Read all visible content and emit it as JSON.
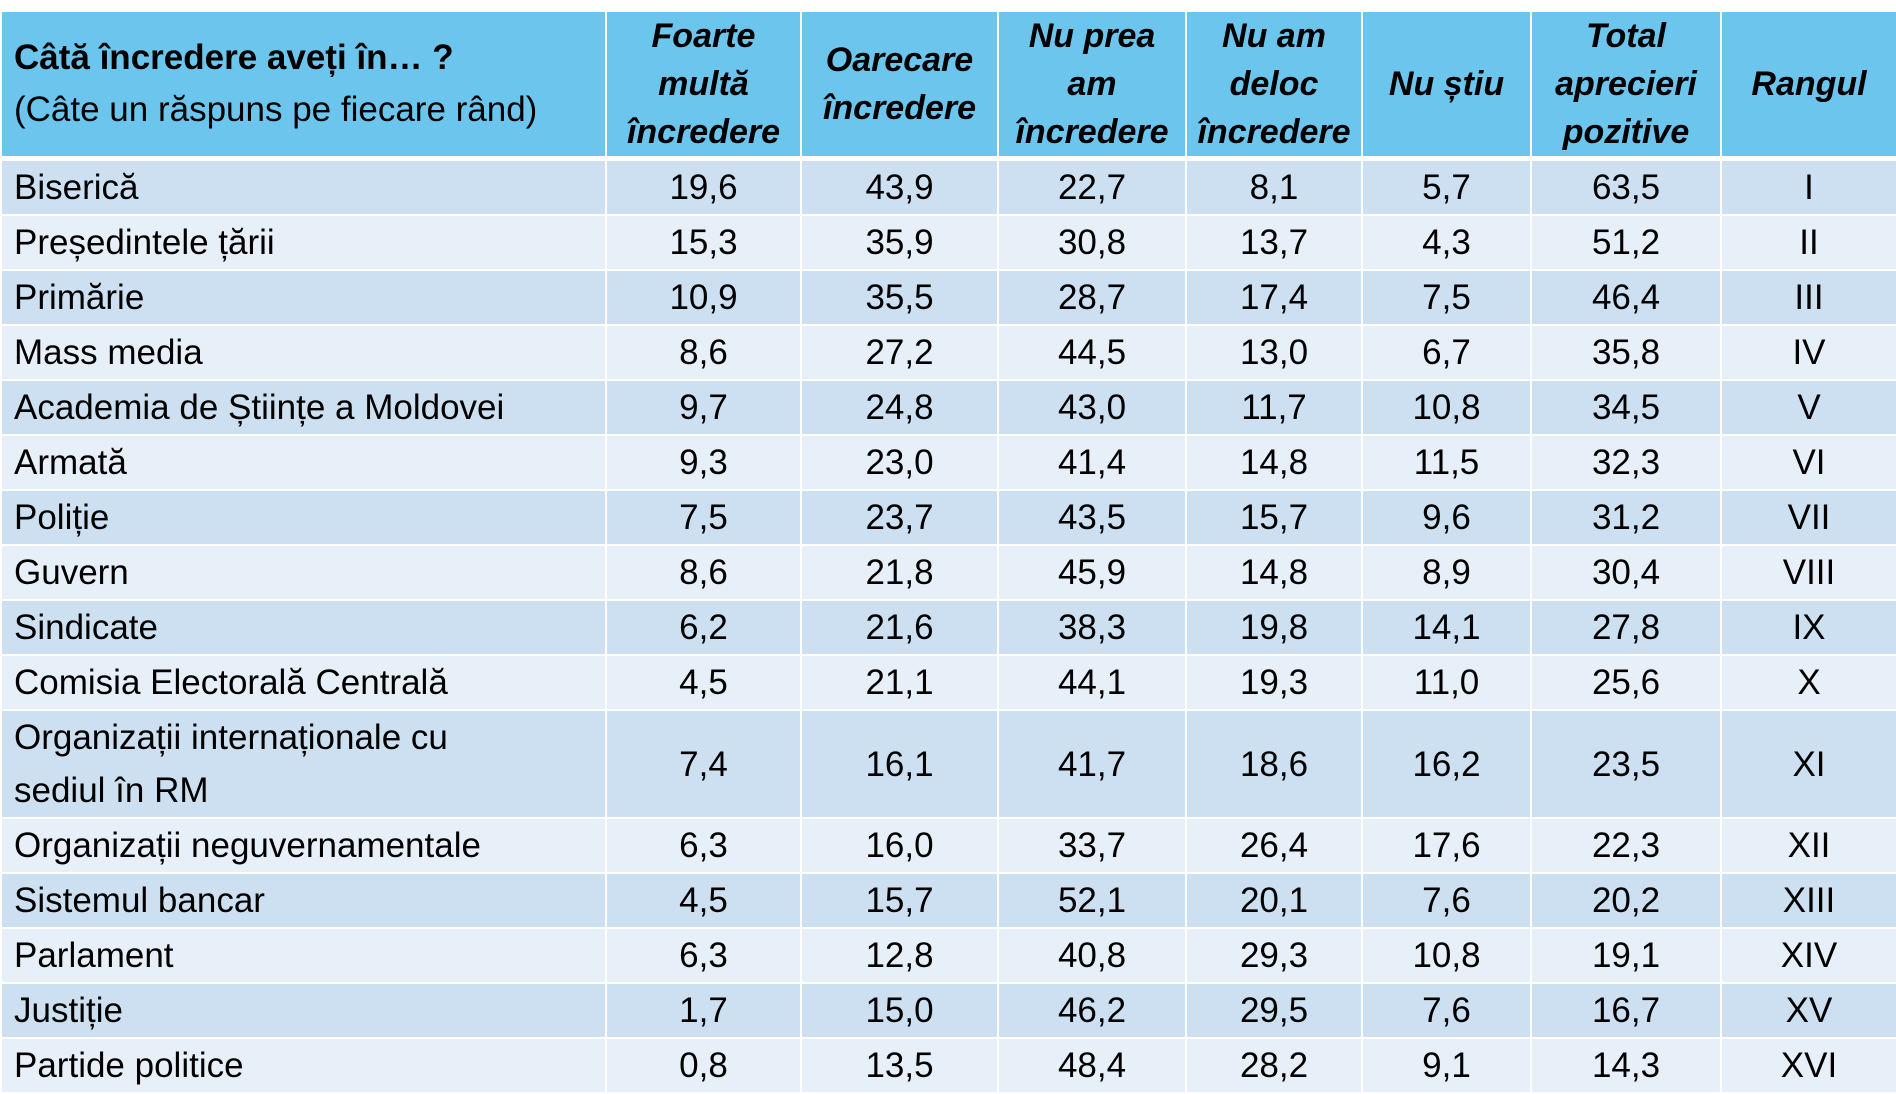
{
  "table": {
    "question_title": "Câtă încredere aveți în… ?",
    "question_subtitle": "(Câte un răspuns pe fiecare rând)",
    "columns": [
      [
        "Foarte",
        "multă",
        "încredere"
      ],
      [
        "Oarecare",
        "încredere"
      ],
      [
        "Nu prea",
        "am",
        "încredere"
      ],
      [
        "Nu am",
        "deloc",
        "încredere"
      ],
      [
        "Nu știu"
      ],
      [
        "Total",
        "aprecieri",
        "pozitive"
      ],
      [
        "Rangul"
      ]
    ],
    "rows": [
      {
        "institution": [
          "Biserică"
        ],
        "values": [
          "19,6",
          "43,9",
          "22,7",
          "8,1",
          "5,7",
          "63,5",
          "I"
        ]
      },
      {
        "institution": [
          "Președintele țării"
        ],
        "values": [
          "15,3",
          "35,9",
          "30,8",
          "13,7",
          "4,3",
          "51,2",
          "II"
        ]
      },
      {
        "institution": [
          "Primărie"
        ],
        "values": [
          "10,9",
          "35,5",
          "28,7",
          "17,4",
          "7,5",
          "46,4",
          "III"
        ]
      },
      {
        "institution": [
          "Mass media"
        ],
        "values": [
          "8,6",
          "27,2",
          "44,5",
          "13,0",
          "6,7",
          "35,8",
          "IV"
        ]
      },
      {
        "institution": [
          "Academia de Științe a Moldovei"
        ],
        "values": [
          "9,7",
          "24,8",
          "43,0",
          "11,7",
          "10,8",
          "34,5",
          "V"
        ]
      },
      {
        "institution": [
          "Armată"
        ],
        "values": [
          "9,3",
          "23,0",
          "41,4",
          "14,8",
          "11,5",
          "32,3",
          "VI"
        ]
      },
      {
        "institution": [
          "Poliție"
        ],
        "values": [
          "7,5",
          "23,7",
          "43,5",
          "15,7",
          "9,6",
          "31,2",
          "VII"
        ]
      },
      {
        "institution": [
          "Guvern"
        ],
        "values": [
          "8,6",
          "21,8",
          "45,9",
          "14,8",
          "8,9",
          "30,4",
          "VIII"
        ]
      },
      {
        "institution": [
          "Sindicate"
        ],
        "values": [
          "6,2",
          "21,6",
          "38,3",
          "19,8",
          "14,1",
          "27,8",
          "IX"
        ]
      },
      {
        "institution": [
          "Comisia Electorală Centrală"
        ],
        "values": [
          "4,5",
          "21,1",
          "44,1",
          "19,3",
          "11,0",
          "25,6",
          "X"
        ]
      },
      {
        "institution": [
          "Organizații internaționale cu",
          "sediul în RM"
        ],
        "values": [
          "7,4",
          "16,1",
          "41,7",
          "18,6",
          "16,2",
          "23,5",
          "XI"
        ]
      },
      {
        "institution": [
          "Organizații neguvernamentale"
        ],
        "values": [
          "6,3",
          "16,0",
          "33,7",
          "26,4",
          "17,6",
          "22,3",
          "XII"
        ]
      },
      {
        "institution": [
          "Sistemul bancar"
        ],
        "values": [
          "4,5",
          "15,7",
          "52,1",
          "20,1",
          "7,6",
          "20,2",
          "XIII"
        ]
      },
      {
        "institution": [
          "Parlament"
        ],
        "values": [
          "6,3",
          "12,8",
          "40,8",
          "29,3",
          "10,8",
          "19,1",
          "XIV"
        ]
      },
      {
        "institution": [
          "Justiție"
        ],
        "values": [
          "1,7",
          "15,0",
          "46,2",
          "29,5",
          "7,6",
          "16,7",
          "XV"
        ]
      },
      {
        "institution": [
          "Partide politice"
        ],
        "values": [
          "0,8",
          "13,5",
          "48,4",
          "28,2",
          "9,1",
          "14,3",
          "XVI"
        ]
      }
    ]
  }
}
